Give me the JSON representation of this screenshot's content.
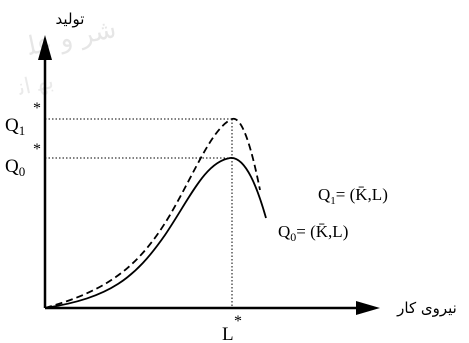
{
  "y_axis_label": "تولید",
  "x_axis_label": "نیروی کار",
  "y_ticks": [
    {
      "main": "Q",
      "sub": "1",
      "sup": "*"
    },
    {
      "main": "Q",
      "sub": "0",
      "sup": "*"
    }
  ],
  "x_tick": {
    "main": "L",
    "sup": "*"
  },
  "curves": [
    {
      "id": "q1",
      "style": "dashed",
      "label_main": "Q",
      "label_sub": "1",
      "label_rest": "= (K̄,L)"
    },
    {
      "id": "q0",
      "style": "solid",
      "label_main": "Q",
      "label_sub": "0",
      "label_rest": "= (K̄,L)"
    }
  ],
  "colors": {
    "ink": "#000000",
    "watermark": "#c8c8c8"
  }
}
